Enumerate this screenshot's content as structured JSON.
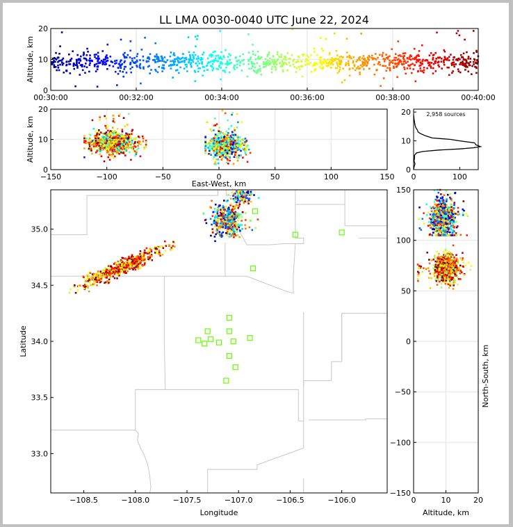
{
  "title": "LL LMA 0030-0040 UTC June 22, 2024",
  "chart_data": [
    {
      "id": "time-height",
      "type": "scatter",
      "title": "LL LMA 0030-0040 UTC June 22, 2024",
      "xlabel": "",
      "ylabel": "Altitude, km",
      "xlim_minutes": [
        30,
        40
      ],
      "ylim": [
        0,
        20
      ],
      "xticks": [
        30,
        32,
        34,
        36,
        38,
        40
      ],
      "xtick_labels": [
        "00:30:00",
        "00:32:00",
        "00:34:00",
        "00:36:00",
        "00:38:00",
        "00:40:00"
      ],
      "yticks": [
        0,
        10,
        20
      ],
      "ytick_labels": [
        "0",
        "10",
        "20"
      ],
      "grid": true,
      "colormap": "jet (color by time)",
      "description": "Sources between ~6 and 12 km throughout, sparse outliers 1-20 km"
    },
    {
      "id": "ew-height",
      "type": "scatter",
      "xlabel": "East-West, km",
      "ylabel": "Altitude, km",
      "xlim": [
        -150,
        150
      ],
      "ylim": [
        0,
        20
      ],
      "xticks": [
        -150,
        -100,
        -50,
        0,
        50,
        100,
        150
      ],
      "xtick_labels": [
        "−150",
        "−100",
        "−50",
        "0",
        "50",
        "100",
        "150"
      ],
      "yticks": [
        0,
        10,
        20
      ],
      "ytick_labels": [
        "0",
        "10",
        "20"
      ],
      "grid": true,
      "clusters": [
        {
          "x_range": [
            -120,
            -65
          ],
          "z_range": [
            2,
            19
          ],
          "center_x": -95,
          "center_z": 9
        },
        {
          "x_range": [
            -12,
            28
          ],
          "z_range": [
            1,
            20
          ],
          "center_x": 5,
          "center_z": 8
        }
      ]
    },
    {
      "id": "altitude-histogram",
      "type": "line",
      "annotation": "2,958 sources",
      "xlim": [
        0,
        140
      ],
      "ylim": [
        0,
        21
      ],
      "xticks": [
        0,
        100
      ],
      "xtick_labels": [
        "0",
        "100"
      ],
      "yticks": [
        0,
        10,
        20
      ],
      "ytick_labels": [
        "0",
        "10",
        "20"
      ],
      "points": [
        [
          0,
          0
        ],
        [
          1,
          1
        ],
        [
          3,
          2
        ],
        [
          1,
          3
        ],
        [
          2,
          4
        ],
        [
          2,
          5
        ],
        [
          6,
          5.8
        ],
        [
          20,
          6.3
        ],
        [
          55,
          6.8
        ],
        [
          100,
          7.2
        ],
        [
          130,
          7.6
        ],
        [
          145,
          8
        ],
        [
          135,
          8.6
        ],
        [
          132,
          9.3
        ],
        [
          100,
          10
        ],
        [
          80,
          10.5
        ],
        [
          40,
          11
        ],
        [
          25,
          11.8
        ],
        [
          15,
          12.5
        ],
        [
          10,
          13
        ],
        [
          8,
          13.8
        ],
        [
          5,
          14.5
        ],
        [
          3,
          15.5
        ],
        [
          2,
          16.5
        ],
        [
          1,
          17.5
        ],
        [
          0,
          19
        ]
      ]
    },
    {
      "id": "plan-view",
      "type": "scatter",
      "xlabel": "Longitude",
      "ylabel": "Latitude",
      "xlim": [
        -108.82,
        -105.56
      ],
      "ylim": [
        32.65,
        35.35
      ],
      "xticks": [
        -108.5,
        -108.0,
        -107.5,
        -107.0,
        -106.5,
        -106.0
      ],
      "xtick_labels": [
        "−108.5",
        "−108.0",
        "−107.5",
        "−107.0",
        "−106.5",
        "−106.0"
      ],
      "yticks": [
        33.0,
        33.5,
        34.0,
        34.5,
        35.0
      ],
      "ytick_labels": [
        "33.0",
        "33.5",
        "34.0",
        "34.5",
        "35.0"
      ],
      "grid": false,
      "stations": [
        [
          -106.84,
          35.16
        ],
        [
          -106.45,
          34.95
        ],
        [
          -106.0,
          34.97
        ],
        [
          -106.86,
          34.65
        ],
        [
          -107.09,
          34.21
        ],
        [
          -107.3,
          34.09
        ],
        [
          -107.09,
          34.09
        ],
        [
          -107.39,
          34.01
        ],
        [
          -107.27,
          34.02
        ],
        [
          -107.19,
          33.99
        ],
        [
          -107.05,
          34.0
        ],
        [
          -106.89,
          34.03
        ],
        [
          -107.33,
          33.98
        ],
        [
          -107.09,
          33.87
        ],
        [
          -107.03,
          33.77
        ],
        [
          -107.12,
          33.65
        ]
      ],
      "clusters": [
        {
          "lon": -108.13,
          "lat": 34.66,
          "spread_lon": 0.18,
          "spread_lat": 0.07
        },
        {
          "lon": -107.1,
          "lat": 35.08,
          "spread_lon": 0.08,
          "spread_lat": 0.07
        },
        {
          "lon": -106.97,
          "lat": 35.3,
          "spread_lon": 0.05,
          "spread_lat": 0.04
        }
      ]
    },
    {
      "id": "ns-height",
      "type": "scatter",
      "xlabel": "Altitude, km",
      "ylabel": "North-South, km",
      "xlim": [
        0,
        20
      ],
      "ylim": [
        -150,
        150
      ],
      "xticks": [
        0,
        10,
        20
      ],
      "xtick_labels": [
        "0",
        "10",
        "20"
      ],
      "yticks": [
        -150,
        -100,
        -50,
        0,
        50,
        100,
        150
      ],
      "ytick_labels": [
        "−150",
        "−100",
        "−50",
        "0",
        "50",
        "100",
        "150"
      ],
      "grid": true,
      "clusters": [
        {
          "y_range": [
            52,
            95
          ],
          "z_range": [
            1,
            18
          ],
          "center_y": 72,
          "center_z": 10
        },
        {
          "y_range": [
            105,
            150
          ],
          "z_range": [
            1,
            17
          ],
          "center_y": 122,
          "center_z": 9
        }
      ]
    }
  ]
}
